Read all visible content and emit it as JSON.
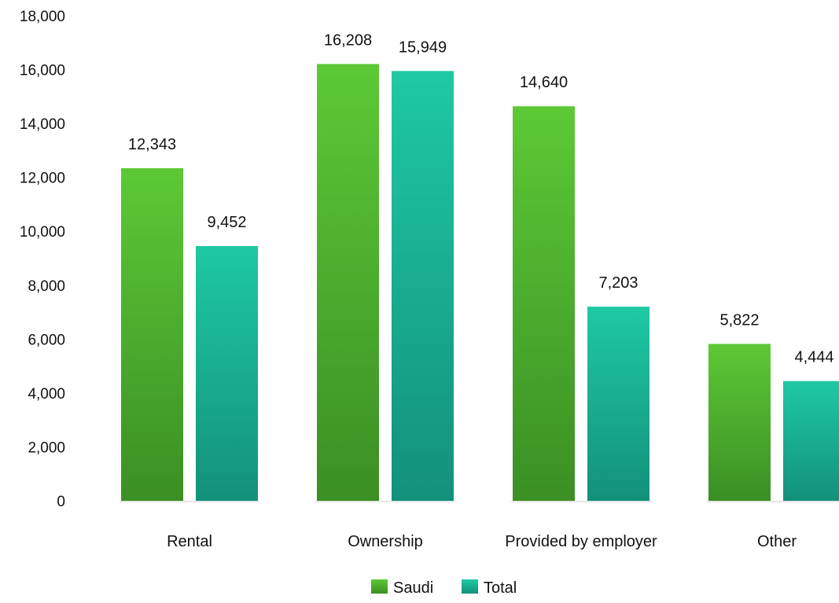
{
  "chart_data": {
    "type": "bar",
    "categories": [
      "Rental",
      "Ownership",
      "Provided by employer",
      "Other"
    ],
    "series": [
      {
        "name": "Saudi",
        "values": [
          12343,
          16208,
          14640,
          5822
        ],
        "color_top": "#5cc936",
        "color_bottom": "#3b8f24"
      },
      {
        "name": "Total",
        "values": [
          9452,
          15949,
          7203,
          4444
        ],
        "color_top": "#1ec9a3",
        "color_bottom": "#13917a"
      }
    ],
    "data_labels": [
      [
        "12,343",
        "16,208",
        "14,640",
        "5,822"
      ],
      [
        "9,452",
        "15,949",
        "7,203",
        "4,444"
      ]
    ],
    "y_ticks": [
      "0",
      "2,000",
      "4,000",
      "6,000",
      "8,000",
      "10,000",
      "12,000",
      "14,000",
      "16,000",
      "18,000"
    ],
    "ylim": [
      0,
      18000
    ],
    "grid": false,
    "legend_position": "bottom-center",
    "title": "",
    "xlabel": "",
    "ylabel": ""
  }
}
